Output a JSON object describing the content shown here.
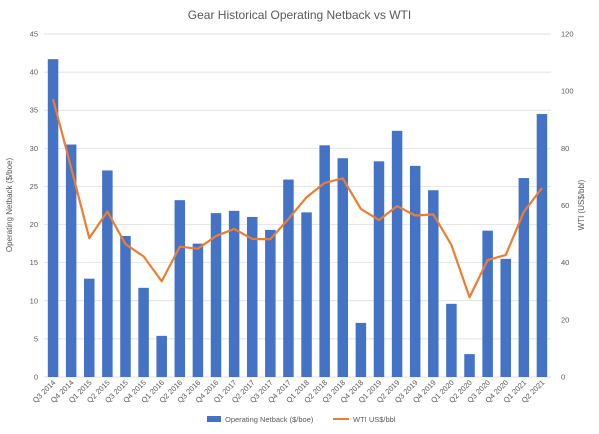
{
  "chart_data": {
    "type": "bar",
    "title": "Gear Historical Operating Netback vs WTI",
    "categories": [
      "Q3 2014",
      "Q4 2014",
      "Q1 2015",
      "Q2 2015",
      "Q3 2015",
      "Q4 2015",
      "Q1 2016",
      "Q2 2016",
      "Q3 2016",
      "Q4 2016",
      "Q1 2017",
      "Q2 2017",
      "Q3 2017",
      "Q4 2017",
      "Q1 2018",
      "Q2 2018",
      "Q3 2018",
      "Q4 2018",
      "Q1 2019",
      "Q2 2019",
      "Q3 2019",
      "Q4 2019",
      "Q1 2020",
      "Q2 2020",
      "Q3 2020",
      "Q4 2020",
      "Q1 2021",
      "Q2 2021"
    ],
    "ylabel": "Operating Netback ($/boe)",
    "y2label": "WTI (US$/bbl)",
    "ylim": [
      0,
      45
    ],
    "y2lim": [
      0,
      120
    ],
    "yticks": [
      0,
      5,
      10,
      15,
      20,
      25,
      30,
      35,
      40,
      45
    ],
    "y2ticks": [
      0,
      20,
      40,
      60,
      80,
      100,
      120
    ],
    "grid": true,
    "legend_position": "bottom",
    "series": [
      {
        "name": "Operating Netback ($/boe)",
        "type": "bar",
        "axis": "left",
        "color": "#4472C4",
        "values": [
          41.7,
          30.5,
          12.9,
          27.1,
          18.5,
          11.7,
          5.4,
          23.2,
          17.5,
          21.5,
          21.8,
          21.0,
          19.3,
          25.9,
          21.6,
          30.4,
          28.7,
          7.1,
          28.3,
          32.3,
          27.7,
          24.5,
          9.6,
          3.0,
          19.2,
          15.5,
          26.1,
          34.5
        ]
      },
      {
        "name": "WTI US$/bbl",
        "type": "line",
        "axis": "right",
        "color": "#ED7D31",
        "values": [
          97.2,
          73.2,
          48.6,
          57.9,
          46.5,
          42.2,
          33.5,
          45.6,
          44.9,
          49.3,
          51.8,
          48.3,
          48.2,
          55.3,
          62.9,
          67.9,
          69.5,
          58.8,
          54.9,
          59.8,
          56.5,
          56.9,
          46.2,
          27.9,
          40.9,
          42.7,
          57.8,
          66.1
        ]
      }
    ]
  }
}
